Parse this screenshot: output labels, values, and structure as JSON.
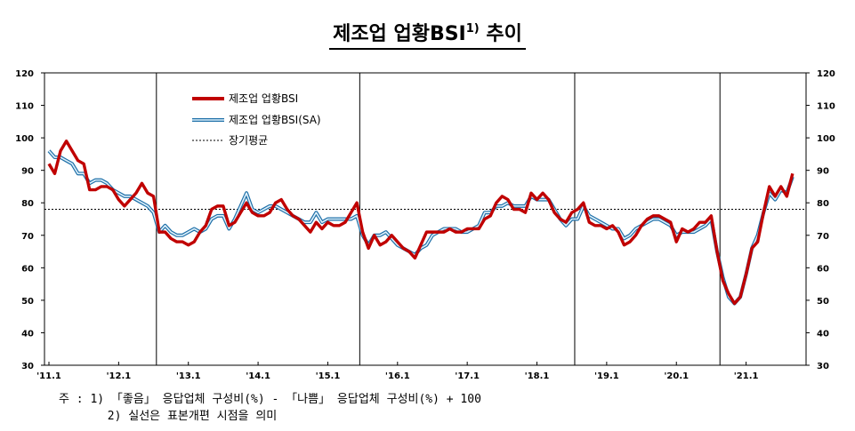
{
  "title": {
    "main": "제조업 업황BSI",
    "sup": "1)",
    "tail": "추이"
  },
  "chart_data": {
    "type": "line",
    "ylim": [
      30,
      120
    ],
    "yticks": [
      30,
      40,
      50,
      60,
      70,
      80,
      90,
      100,
      110,
      120
    ],
    "xticks": [
      "'11.1",
      "'12.1",
      "'13.1",
      "'14.1",
      "'15.1",
      "'16.1",
      "'17.1",
      "'18.1",
      "'19.1",
      "'20.1",
      "'21.1"
    ],
    "grid": false,
    "legend_position": "top-left",
    "long_term_average": {
      "name": "장기평균",
      "value": 78,
      "color": "#000000"
    },
    "series": [
      {
        "name": "제조업 업황BSI",
        "color": "#c00000",
        "values": [
          92,
          89,
          96,
          99,
          96,
          93,
          92,
          84,
          84,
          85,
          85,
          84,
          81,
          79,
          81,
          83,
          86,
          83,
          82,
          71,
          71,
          69,
          68,
          68,
          67,
          68,
          71,
          73,
          78,
          79,
          79,
          73,
          74,
          77,
          80,
          77,
          76,
          76,
          77,
          80,
          81,
          78,
          76,
          75,
          73,
          71,
          74,
          72,
          74,
          73,
          73,
          74,
          77,
          80,
          71,
          66,
          70,
          67,
          68,
          70,
          68,
          66,
          65,
          63,
          67,
          71,
          71,
          71,
          71,
          72,
          71,
          71,
          72,
          72,
          72,
          75,
          76,
          80,
          82,
          81,
          78,
          78,
          77,
          83,
          81,
          83,
          81,
          77,
          75,
          74,
          77,
          78,
          80,
          74,
          73,
          73,
          72,
          73,
          71,
          67,
          68,
          70,
          73,
          75,
          76,
          76,
          75,
          74,
          68,
          72,
          71,
          72,
          74,
          74,
          76,
          65,
          56,
          52,
          49,
          51,
          58,
          66,
          68,
          77,
          85,
          82,
          85,
          82,
          89
        ]
      },
      {
        "name": "제조업 업황BSI(SA)",
        "color": "#4ea6dc",
        "values": [
          96,
          94,
          94,
          93,
          92,
          89,
          89,
          86,
          87,
          87,
          86,
          84,
          83,
          82,
          82,
          81,
          80,
          79,
          77,
          71,
          73,
          71,
          70,
          70,
          71,
          72,
          71,
          72,
          75,
          76,
          76,
          72,
          75,
          79,
          83,
          78,
          77,
          78,
          79,
          79,
          78,
          77,
          76,
          75,
          74,
          74,
          77,
          74,
          75,
          75,
          75,
          75,
          75,
          76,
          70,
          67,
          70,
          70,
          71,
          69,
          67,
          66,
          65,
          64,
          66,
          67,
          70,
          71,
          72,
          72,
          72,
          71,
          71,
          72,
          73,
          77,
          77,
          79,
          79,
          80,
          79,
          79,
          79,
          82,
          81,
          81,
          81,
          78,
          75,
          73,
          75,
          75,
          79,
          76,
          75,
          74,
          73,
          72,
          72,
          69,
          70,
          72,
          73,
          74,
          75,
          75,
          74,
          73,
          70,
          71,
          71,
          71,
          72,
          73,
          75,
          65,
          57,
          51,
          49,
          51,
          58,
          66,
          70,
          77,
          83,
          81,
          84,
          83,
          88
        ]
      }
    ],
    "event_markers_month_index": [
      19,
      54,
      91,
      116
    ]
  },
  "notes": {
    "line1": "주 : 1) 「좋음」 응답업체 구성비(%) - 「나쁨」 응답업체 구성비(%) + 100",
    "line2": "       2) 실선은 표본개편 시점을 의미"
  }
}
